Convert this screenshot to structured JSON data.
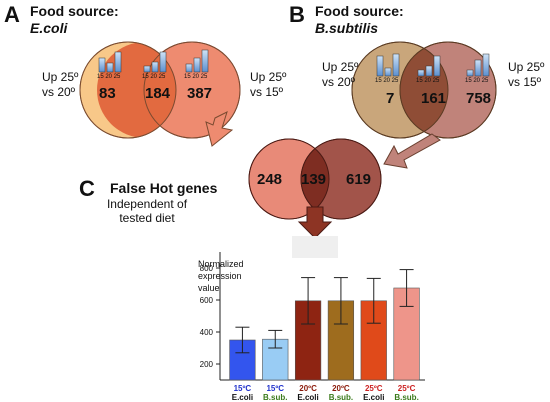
{
  "panel_a": {
    "letter": "A",
    "title_line1": "Food source:",
    "title_line2": "E.coli",
    "left_label": [
      "Up 25º",
      "vs 20º"
    ],
    "right_label": [
      "Up 25º",
      "vs 15º"
    ],
    "counts": {
      "left_only": "83",
      "overlap": "184",
      "right_only": "387"
    },
    "mini_bar_ticks": "15 20 25",
    "colors": {
      "left_circle": "#f8c889",
      "right_circle": "#ee8b70",
      "overlap": "#e26a40"
    }
  },
  "panel_b": {
    "letter": "B",
    "title_line1": "Food source:",
    "title_line2": "B.subtilis",
    "left_label": [
      "Up 25º",
      "vs 20º"
    ],
    "right_label": [
      "Up 25º",
      "vs 15º"
    ],
    "counts": {
      "left_only": "7",
      "overlap": "161",
      "right_only": "758"
    },
    "mini_bar_ticks": "15 20 25",
    "colors": {
      "left_circle": "#c9a67b",
      "right_circle": "#c0837a",
      "overlap": "#8f4d36"
    }
  },
  "panel_c": {
    "letter": "C",
    "title": "False Hot genes",
    "subtitle_line1": "Independent of",
    "subtitle_line2": "tested diet",
    "counts": {
      "left_only": "248",
      "overlap": "139",
      "right_only": "619"
    },
    "colors": {
      "left_circle": "#e88a78",
      "right_circle": "#a2544a",
      "overlap": "#7e2d22",
      "arrow": "#8d3424"
    }
  },
  "chart_data": {
    "type": "bar",
    "ylabel": "Normalized expression value",
    "ylim": [
      100,
      900
    ],
    "yticks": [
      200,
      400,
      600,
      800
    ],
    "categories": [
      {
        "temp": "15ºC",
        "diet": "E.coli",
        "temp_color": "#2233cc",
        "diet_color": "#111111"
      },
      {
        "temp": "15ºC",
        "diet": "B.sub.",
        "temp_color": "#2233cc",
        "diet_color": "#3a7a1a"
      },
      {
        "temp": "20ºC",
        "diet": "E.coli",
        "temp_color": "#8b1a0a",
        "diet_color": "#111111"
      },
      {
        "temp": "20ºC",
        "diet": "B.sub.",
        "temp_color": "#8b1a0a",
        "diet_color": "#3a7a1a"
      },
      {
        "temp": "25ºC",
        "diet": "E.coli",
        "temp_color": "#cc2222",
        "diet_color": "#111111"
      },
      {
        "temp": "25ºC",
        "diet": "B.sub.",
        "temp_color": "#cc2222",
        "diet_color": "#3a7a1a"
      }
    ],
    "values": [
      350,
      355,
      595,
      595,
      595,
      675
    ],
    "errors": [
      80,
      55,
      145,
      145,
      140,
      115
    ],
    "colors": [
      "#3355ee",
      "#99ccf4",
      "#8e2412",
      "#9e6c1e",
      "#e04a1a",
      "#ee958a"
    ],
    "grid": false
  }
}
